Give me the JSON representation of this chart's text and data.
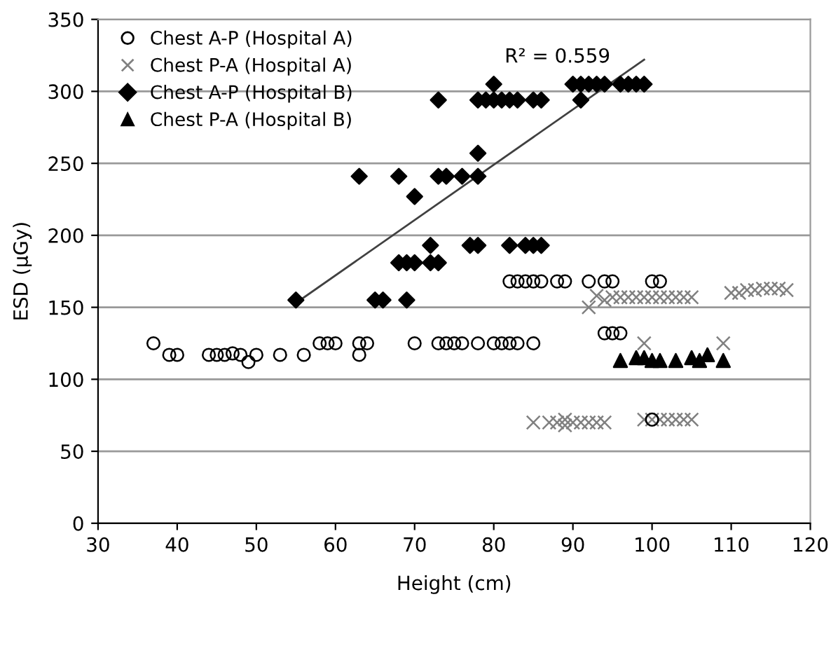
{
  "chart_data": {
    "type": "scatter",
    "xlabel": "Height (cm)",
    "ylabel": "ESD (µGy)",
    "xlim": [
      30,
      120
    ],
    "xticks": [
      30,
      40,
      50,
      60,
      70,
      80,
      90,
      100,
      110,
      120
    ],
    "ylim": [
      0,
      350
    ],
    "yticks": [
      0,
      50,
      100,
      150,
      200,
      250,
      300,
      350
    ],
    "grid": "y",
    "legend": "top left",
    "annotations": [
      "R² = 0.559"
    ],
    "series": [
      {
        "name": "Chest A-P (Hospital A)",
        "color": "#000000",
        "marker": "circle",
        "x": [
          37,
          39,
          40,
          44,
          45,
          46,
          47,
          48,
          49,
          50,
          53,
          56,
          58,
          59,
          60,
          63,
          63,
          64,
          70,
          73,
          74,
          75,
          76,
          78,
          80,
          81,
          82,
          83,
          85,
          82,
          83,
          84,
          85,
          86,
          88,
          89,
          92,
          94,
          95,
          100,
          101,
          94,
          95,
          96,
          100
        ],
        "values": [
          125,
          117,
          117,
          117,
          117,
          117,
          118,
          117,
          112,
          117,
          117,
          117,
          125,
          125,
          125,
          125,
          117,
          125,
          125,
          125,
          125,
          125,
          125,
          125,
          125,
          125,
          125,
          125,
          125,
          168,
          168,
          168,
          168,
          168,
          168,
          168,
          168,
          168,
          168,
          168,
          168,
          132,
          132,
          132,
          72
        ]
      },
      {
        "name": "Chest P-A (Hospital A)",
        "color": "#808080",
        "marker": "cross",
        "x": [
          92,
          93,
          94,
          95,
          96,
          97,
          98,
          99,
          100,
          101,
          102,
          103,
          104,
          105,
          99,
          109,
          110,
          111,
          112,
          113,
          114,
          115,
          116,
          117,
          85,
          87,
          88,
          89,
          89,
          90,
          91,
          92,
          93,
          94,
          99,
          100,
          101,
          102,
          103,
          104,
          105
        ],
        "values": [
          150,
          158,
          155,
          157,
          157,
          157,
          157,
          157,
          157,
          157,
          157,
          157,
          157,
          157,
          125,
          125,
          160,
          160,
          162,
          162,
          163,
          163,
          163,
          162,
          70,
          70,
          70,
          68,
          72,
          70,
          70,
          70,
          70,
          70,
          72,
          72,
          72,
          72,
          72,
          72,
          72
        ]
      },
      {
        "name": "Chest A-P (Hospital B)",
        "color": "#000000",
        "marker": "diamond",
        "x": [
          55,
          63,
          65,
          66,
          68,
          68,
          69,
          69,
          70,
          70,
          72,
          72,
          73,
          73,
          73,
          74,
          76,
          77,
          78,
          78,
          78,
          78,
          79,
          80,
          80,
          81,
          82,
          83,
          82,
          84,
          85,
          86,
          85,
          86,
          90,
          91,
          92,
          93,
          94,
          91,
          96,
          97,
          98,
          99
        ],
        "values": [
          155,
          241,
          155,
          155,
          241,
          181,
          181,
          155,
          181,
          227,
          193,
          181,
          181,
          294,
          241,
          241,
          241,
          193,
          193,
          241,
          257,
          294,
          294,
          294,
          305,
          294,
          294,
          294,
          193,
          193,
          193,
          193,
          294,
          294,
          305,
          305,
          305,
          305,
          305,
          294,
          305,
          305,
          305,
          305
        ]
      },
      {
        "name": "Chest P-A (Hospital B)",
        "color": "#000000",
        "marker": "triangle",
        "x": [
          96,
          98,
          99,
          100,
          101,
          103,
          105,
          106,
          107,
          109
        ],
        "values": [
          113,
          115,
          115,
          113,
          113,
          113,
          115,
          113,
          117,
          113
        ]
      },
      {
        "type": "line",
        "color": "#404040",
        "marker": "none",
        "x": [
          55,
          99
        ],
        "values": [
          153,
          322
        ]
      }
    ]
  }
}
